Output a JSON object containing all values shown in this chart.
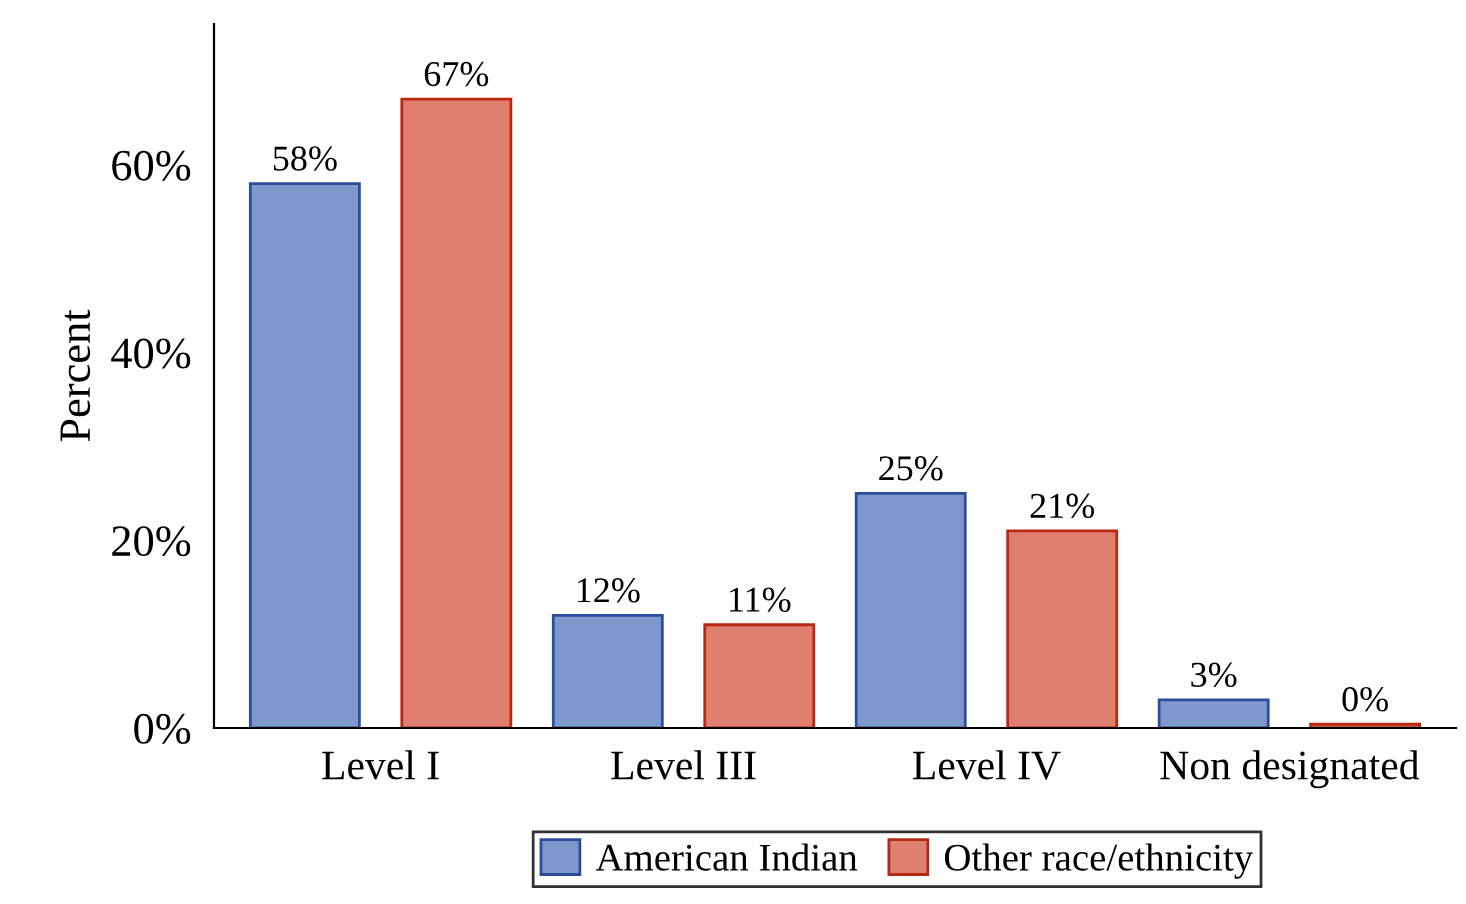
{
  "chart_data": {
    "type": "bar",
    "ylabel": "Percent",
    "categories": [
      "Level I",
      "Level III",
      "Level IV",
      "Non designated"
    ],
    "series": [
      {
        "name": "American Indian",
        "color": "#7f97cd",
        "values": [
          58,
          12,
          25,
          3
        ],
        "value_labels": [
          "58%",
          "12%",
          "25%",
          "3%"
        ]
      },
      {
        "name": "Other race/ethnicity",
        "color": "#df7f6f",
        "values": [
          67,
          11,
          21,
          0.4
        ],
        "value_labels": [
          "67%",
          "11%",
          "21%",
          "0%"
        ]
      }
    ],
    "ylim": [
      0,
      75
    ],
    "yticks": [
      {
        "value": 0,
        "label": "0%"
      },
      {
        "value": 20,
        "label": "20%"
      },
      {
        "value": 40,
        "label": "40%"
      },
      {
        "value": 60,
        "label": "60%"
      }
    ],
    "legend": "bottom",
    "grid": false
  }
}
